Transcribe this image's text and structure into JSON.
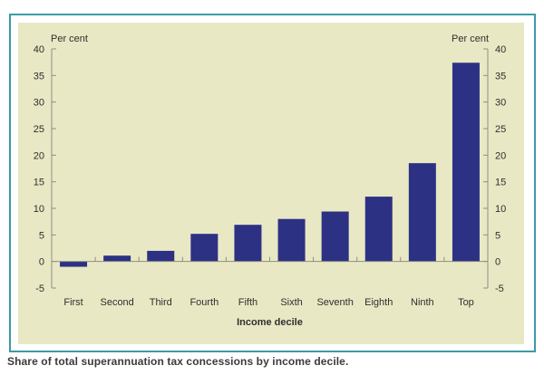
{
  "figure": {
    "caption": "Share of total superannuation tax concessions by income decile.",
    "frame_color": "#3d9aa8",
    "panel_color": "#e8e8c4"
  },
  "chart_data": {
    "type": "bar",
    "title": "",
    "categories": [
      "First",
      "Second",
      "Third",
      "Fourth",
      "Fifth",
      "Sixth",
      "Seventh",
      "Eighth",
      "Ninth",
      "Top"
    ],
    "values": [
      -1.0,
      1.1,
      2.0,
      5.2,
      6.9,
      8.0,
      9.4,
      12.2,
      18.5,
      37.4
    ],
    "xlabel": "Income decile",
    "ylabel_left": "Per cent",
    "ylabel_right": "Per cent",
    "ylim": [
      -5,
      40
    ],
    "yticks": [
      -5,
      0,
      5,
      10,
      15,
      20,
      25,
      30,
      35,
      40
    ],
    "grid": false,
    "legend_position": "none",
    "colors": {
      "bar": "#2d3184",
      "axis": "#8f9080",
      "text": "#2f2f2f"
    }
  }
}
